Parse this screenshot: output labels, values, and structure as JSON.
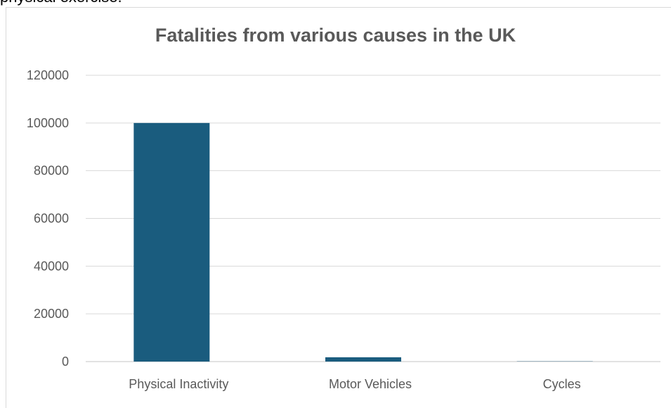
{
  "caption_fragment": "physical exercise.",
  "chart_data": {
    "type": "bar",
    "title": "Fatalities from various causes in the UK",
    "categories": [
      "Physical Inactivity",
      "Motor Vehicles",
      "Cycles"
    ],
    "values": [
      100000,
      1800,
      100
    ],
    "ylim": [
      0,
      120000
    ],
    "yticks": [
      "0",
      "20000",
      "40000",
      "60000",
      "80000",
      "100000",
      "120000"
    ],
    "xlabel": "",
    "ylabel": "",
    "grid": true,
    "bar_color": "#1a5c7e",
    "grid_color": "#d9d9d9"
  }
}
